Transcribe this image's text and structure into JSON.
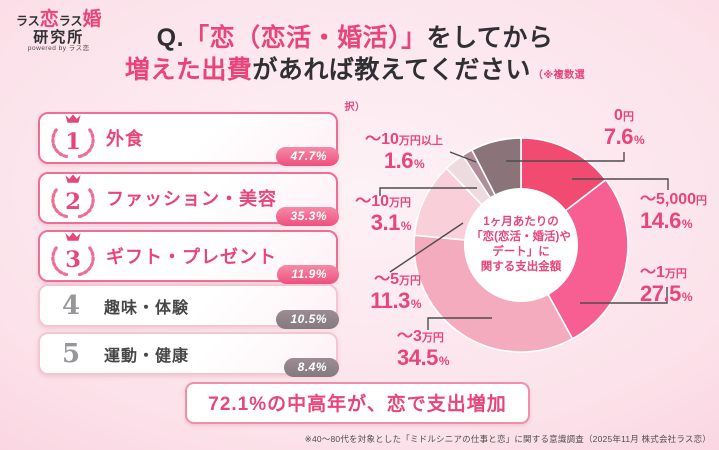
{
  "logo": {
    "part1": "ラス",
    "part2": "恋",
    "part3": "ラス",
    "part4": "婚",
    "line2": "研究所",
    "tagline": "powered by ラス恋"
  },
  "title": {
    "q_prefix": "Q.",
    "line1_highlight": "「恋（恋活・婚活）」",
    "line1_rest": "をしてから",
    "line2_highlight": "増えた出費",
    "line2_rest": "があれば教えてください",
    "note": "（※複数選択）"
  },
  "ranking": {
    "items": [
      {
        "rank": "1",
        "label": "外食",
        "value": "47.7%"
      },
      {
        "rank": "2",
        "label": "ファッション・美容",
        "value": "35.3%"
      },
      {
        "rank": "3",
        "label": "ギフト・プレゼント",
        "value": "11.9%"
      },
      {
        "rank": "4",
        "label": "趣味・体験",
        "value": "10.5%"
      },
      {
        "rank": "5",
        "label": "運動・健康",
        "value": "8.4%"
      }
    ]
  },
  "chart_data": {
    "type": "pie",
    "subtype": "donut",
    "title": "1ヶ月あたりの「恋(恋活・婚活)やデート」に関する支出金額",
    "center_lines": [
      "1ヶ月あたりの",
      "「恋(恋活・婚活)や",
      "デート」に",
      "関する支出金額"
    ],
    "unit": "%",
    "start_angle_deg": 0,
    "direction": "clockwise",
    "legend_position": "around",
    "segments": [
      {
        "label": "～5,000円",
        "label_main": "～5,000",
        "label_suffix": "円",
        "value": 14.6,
        "color": "#f14b72"
      },
      {
        "label": "～1万円",
        "label_main": "～1",
        "label_suffix": "万円",
        "value": 27.5,
        "color": "#f75e91"
      },
      {
        "label": "～3万円",
        "label_main": "～3",
        "label_suffix": "万円",
        "value": 34.5,
        "color": "#f4abbe"
      },
      {
        "label": "～5万円",
        "label_main": "～5",
        "label_suffix": "万円",
        "value": 11.3,
        "color": "#f9cfd9"
      },
      {
        "label": "～10万円",
        "label_main": "～10",
        "label_suffix": "万円",
        "value": 3.1,
        "color": "#eedbdf"
      },
      {
        "label": "～10万円以上",
        "label_main": "～10",
        "label_suffix": "万円以上",
        "value": 1.6,
        "color": "#b08d9a"
      },
      {
        "label": "0円",
        "label_main": "0",
        "label_suffix": "円",
        "value": 7.6,
        "color": "#8a7479"
      }
    ]
  },
  "banner": {
    "text": "72.1%の中高年が、恋で支出増加"
  },
  "footnote": "※40～80代を対象とした「ミドルシニアの仕事と恋」に関する意識調査（2025年11月 株式会社ラス恋）",
  "colors": {
    "accent_pink": "#e8457a",
    "title_dark": "#302f33",
    "leader_line": "#4d4d4d",
    "badge_pink": "#ef4f7e",
    "badge_gray": "#8e8186",
    "card_border_pink": "#ef6e95",
    "card_border_gray": "#f3c6d2"
  }
}
